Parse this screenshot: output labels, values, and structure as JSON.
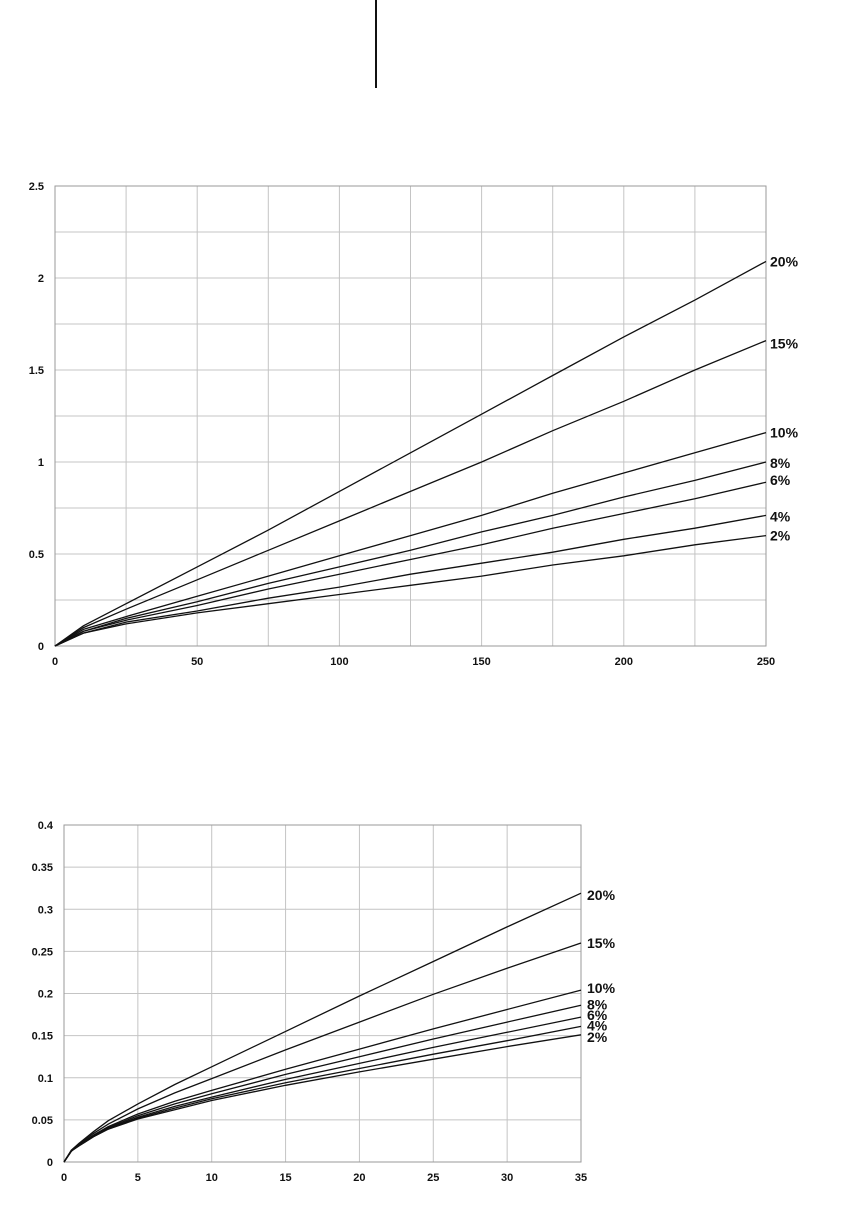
{
  "colors": {
    "line": "#111111",
    "grid": "#c4c4c4",
    "frame": "#9a9a9a",
    "page_mark": "#111111"
  },
  "chart_data": [
    {
      "type": "line",
      "title": "",
      "xlabel": "",
      "ylabel": "",
      "xlim": [
        0,
        250
      ],
      "ylim": [
        0,
        2.5
      ],
      "x_ticks": [
        0,
        50,
        100,
        150,
        200,
        250
      ],
      "x_tick_labels": [
        "0",
        "50",
        "100",
        "150",
        "200",
        "250"
      ],
      "y_ticks": [
        0,
        0.5,
        1,
        1.5,
        2,
        2.5
      ],
      "y_tick_labels": [
        "0",
        "0.5",
        "1",
        "1.5",
        "2",
        "2.5"
      ],
      "x_grid_step": 25,
      "y_grid_step": 0.25,
      "grid": true,
      "legend": "none",
      "x": [
        0,
        10,
        25,
        50,
        75,
        100,
        125,
        150,
        175,
        200,
        225,
        250
      ],
      "series": [
        {
          "name": "20%",
          "values": [
            0,
            0.11,
            0.23,
            0.43,
            0.63,
            0.84,
            1.05,
            1.26,
            1.47,
            1.68,
            1.88,
            2.09
          ]
        },
        {
          "name": "15%",
          "values": [
            0,
            0.1,
            0.2,
            0.36,
            0.52,
            0.68,
            0.84,
            1.0,
            1.17,
            1.33,
            1.5,
            1.66
          ]
        },
        {
          "name": "10%",
          "values": [
            0,
            0.09,
            0.16,
            0.27,
            0.38,
            0.49,
            0.6,
            0.71,
            0.83,
            0.94,
            1.05,
            1.16
          ]
        },
        {
          "name": "8%",
          "values": [
            0,
            0.08,
            0.15,
            0.24,
            0.34,
            0.43,
            0.52,
            0.62,
            0.71,
            0.81,
            0.9,
            1.0
          ]
        },
        {
          "name": "6%",
          "values": [
            0,
            0.08,
            0.14,
            0.22,
            0.31,
            0.39,
            0.47,
            0.55,
            0.64,
            0.72,
            0.8,
            0.89
          ]
        },
        {
          "name": "4%",
          "values": [
            0,
            0.07,
            0.13,
            0.19,
            0.26,
            0.32,
            0.39,
            0.45,
            0.51,
            0.58,
            0.64,
            0.71
          ]
        },
        {
          "name": "2%",
          "values": [
            0,
            0.07,
            0.12,
            0.18,
            0.23,
            0.28,
            0.33,
            0.38,
            0.44,
            0.49,
            0.55,
            0.6
          ]
        }
      ]
    },
    {
      "type": "line",
      "title": "",
      "xlabel": "",
      "ylabel": "",
      "xlim": [
        0,
        35
      ],
      "ylim": [
        0,
        0.4
      ],
      "x_ticks": [
        0,
        5,
        10,
        15,
        20,
        25,
        30,
        35
      ],
      "x_tick_labels": [
        "0",
        "5",
        "10",
        "15",
        "20",
        "25",
        "30",
        "35"
      ],
      "y_ticks": [
        0,
        0.05,
        0.1,
        0.15,
        0.2,
        0.25,
        0.3,
        0.35,
        0.4
      ],
      "y_tick_labels": [
        "0",
        "0.05",
        "0.1",
        "0.15",
        "0.2",
        "0.25",
        "0.3",
        "0.35",
        "0.4"
      ],
      "x_grid_step": 5,
      "y_grid_step": 0.05,
      "grid": true,
      "legend": "none",
      "x": [
        0,
        0.5,
        1,
        2,
        3,
        5,
        7.5,
        10,
        15,
        20,
        25,
        30,
        35
      ],
      "series": [
        {
          "name": "20%",
          "values": [
            0,
            0.014,
            0.022,
            0.036,
            0.049,
            0.069,
            0.092,
            0.113,
            0.155,
            0.197,
            0.238,
            0.279,
            0.319
          ]
        },
        {
          "name": "15%",
          "values": [
            0,
            0.014,
            0.021,
            0.034,
            0.045,
            0.063,
            0.082,
            0.099,
            0.133,
            0.166,
            0.199,
            0.23,
            0.26
          ]
        },
        {
          "name": "10%",
          "values": [
            0,
            0.013,
            0.02,
            0.032,
            0.042,
            0.057,
            0.072,
            0.085,
            0.11,
            0.134,
            0.158,
            0.181,
            0.204
          ]
        },
        {
          "name": "8%",
          "values": [
            0,
            0.013,
            0.02,
            0.031,
            0.041,
            0.055,
            0.069,
            0.081,
            0.104,
            0.125,
            0.146,
            0.166,
            0.186
          ]
        },
        {
          "name": "6%",
          "values": [
            0,
            0.013,
            0.02,
            0.031,
            0.04,
            0.053,
            0.066,
            0.077,
            0.098,
            0.117,
            0.136,
            0.154,
            0.172
          ]
        },
        {
          "name": "4%",
          "values": [
            0,
            0.013,
            0.019,
            0.03,
            0.039,
            0.052,
            0.064,
            0.075,
            0.094,
            0.111,
            0.128,
            0.144,
            0.161
          ]
        },
        {
          "name": "2%",
          "values": [
            0,
            0.013,
            0.019,
            0.03,
            0.039,
            0.051,
            0.062,
            0.073,
            0.091,
            0.107,
            0.122,
            0.137,
            0.151
          ]
        }
      ]
    }
  ]
}
